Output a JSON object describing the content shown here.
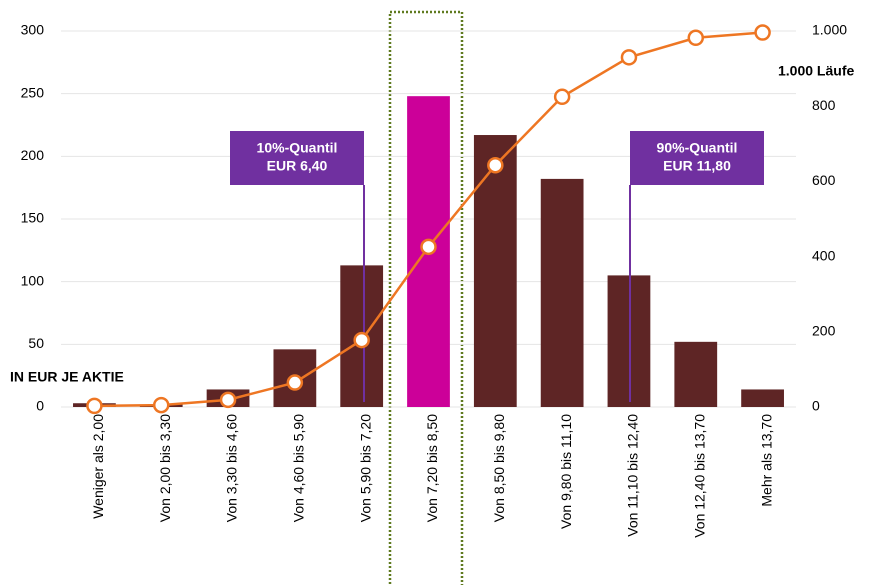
{
  "chart_data": {
    "type": "bar_line",
    "y_axis_label": "IN EUR JE AKTIE",
    "y2_axis_label": "1.000 Läufe",
    "categories": [
      "Weniger als 2,00",
      "Von 2,00 bis 3,30",
      "Von 3,30 bis 4,60",
      "Von 4,60 bis 5,90",
      "Von 5,90 bis 7,20",
      "Von 7,20 bis 8,50",
      "Von 8,50 bis 9,80",
      "Von 9,80 bis 11,10",
      "Von 11,10 bis 12,40",
      "Von 12,40 bis 13,70",
      "Mehr als 13,70"
    ],
    "series": [
      {
        "type": "bar",
        "colors": [
          "#5e2525",
          "#5e2525",
          "#5e2525",
          "#5e2525",
          "#5e2525",
          "#cc0099",
          "#5e2525",
          "#5e2525",
          "#5e2525",
          "#5e2525",
          "#5e2525"
        ],
        "values": [
          3,
          2,
          14,
          46,
          113,
          248,
          217,
          182,
          105,
          52,
          14
        ]
      },
      {
        "type": "line",
        "axis": "y2",
        "color": "#ee7623",
        "values": [
          3,
          5,
          19,
          65,
          178,
          426,
          643,
          825,
          930,
          982,
          996
        ]
      }
    ],
    "ylim": [
      0,
      300
    ],
    "yticks": [
      0,
      50,
      100,
      150,
      200,
      250,
      300
    ],
    "y2lim": [
      0,
      1000
    ],
    "y2ticks": [
      0,
      200,
      400,
      600,
      800,
      {
        "value": 1000,
        "label": "1.000"
      }
    ],
    "grid": true,
    "annotations": [
      {
        "line1": "10%-Quantil",
        "line2": "EUR 6,40"
      },
      {
        "line1": "90%-Quantil",
        "line2": "EUR 11,80"
      }
    ]
  }
}
